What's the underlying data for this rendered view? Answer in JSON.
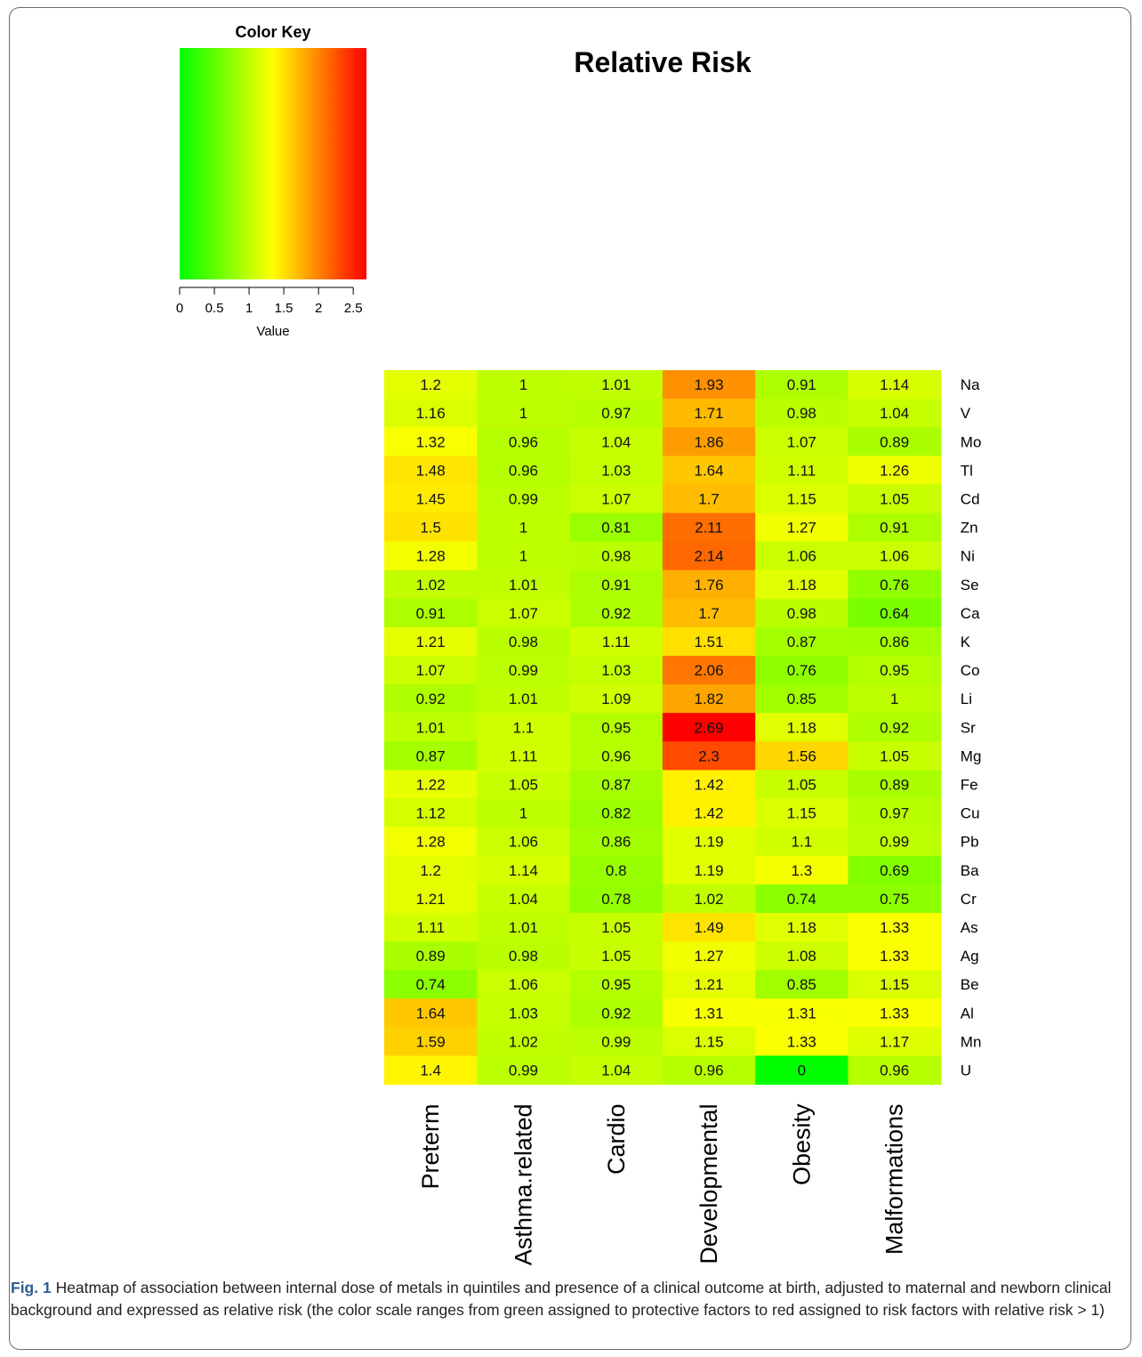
{
  "chart_data": {
    "type": "heatmap",
    "title": "Relative Risk",
    "rows": [
      "Na",
      "V",
      "Mo",
      "Tl",
      "Cd",
      "Zn",
      "Ni",
      "Se",
      "Ca",
      "K",
      "Co",
      "Li",
      "Sr",
      "Mg",
      "Fe",
      "Cu",
      "Pb",
      "Ba",
      "Cr",
      "As",
      "Ag",
      "Be",
      "Al",
      "Mn",
      "U"
    ],
    "columns": [
      "Preterm",
      "Asthma.related",
      "Cardio",
      "Developmental",
      "Obesity",
      "Malformations"
    ],
    "values": [
      [
        "1.2",
        "1",
        "1.01",
        "1.93",
        "0.91",
        "1.14"
      ],
      [
        "1.16",
        "1",
        "0.97",
        "1.71",
        "0.98",
        "1.04"
      ],
      [
        "1.32",
        "0.96",
        "1.04",
        "1.86",
        "1.07",
        "0.89"
      ],
      [
        "1.48",
        "0.96",
        "1.03",
        "1.64",
        "1.11",
        "1.26"
      ],
      [
        "1.45",
        "0.99",
        "1.07",
        "1.7",
        "1.15",
        "1.05"
      ],
      [
        "1.5",
        "1",
        "0.81",
        "2.11",
        "1.27",
        "0.91"
      ],
      [
        "1.28",
        "1",
        "0.98",
        "2.14",
        "1.06",
        "1.06"
      ],
      [
        "1.02",
        "1.01",
        "0.91",
        "1.76",
        "1.18",
        "0.76"
      ],
      [
        "0.91",
        "1.07",
        "0.92",
        "1.7",
        "0.98",
        "0.64"
      ],
      [
        "1.21",
        "0.98",
        "1.11",
        "1.51",
        "0.87",
        "0.86"
      ],
      [
        "1.07",
        "0.99",
        "1.03",
        "2.06",
        "0.76",
        "0.95"
      ],
      [
        "0.92",
        "1.01",
        "1.09",
        "1.82",
        "0.85",
        "1"
      ],
      [
        "1.01",
        "1.1",
        "0.95",
        "2.69",
        "1.18",
        "0.92"
      ],
      [
        "0.87",
        "1.11",
        "0.96",
        "2.3",
        "1.56",
        "1.05"
      ],
      [
        "1.22",
        "1.05",
        "0.87",
        "1.42",
        "1.05",
        "0.89"
      ],
      [
        "1.12",
        "1",
        "0.82",
        "1.42",
        "1.15",
        "0.97"
      ],
      [
        "1.28",
        "1.06",
        "0.86",
        "1.19",
        "1.1",
        "0.99"
      ],
      [
        "1.2",
        "1.14",
        "0.8",
        "1.19",
        "1.3",
        "0.69"
      ],
      [
        "1.21",
        "1.04",
        "0.78",
        "1.02",
        "0.74",
        "0.75"
      ],
      [
        "1.11",
        "1.01",
        "1.05",
        "1.49",
        "1.18",
        "1.33"
      ],
      [
        "0.89",
        "0.98",
        "1.05",
        "1.27",
        "1.08",
        "1.33"
      ],
      [
        "0.74",
        "1.06",
        "0.95",
        "1.21",
        "0.85",
        "1.15"
      ],
      [
        "1.64",
        "1.03",
        "0.92",
        "1.31",
        "1.31",
        "1.33"
      ],
      [
        "1.59",
        "1.02",
        "0.99",
        "1.15",
        "1.33",
        "1.17"
      ],
      [
        "1.4",
        "0.99",
        "1.04",
        "0.96",
        "0",
        "0.96"
      ]
    ],
    "color_key": {
      "title": "Color Key",
      "xlabel": "Value",
      "range": [
        0,
        2.69
      ],
      "ticks": [
        "0",
        "0.5",
        "1",
        "1.5",
        "2",
        "2.5"
      ],
      "colors": [
        "#00ff00",
        "#ffff00",
        "#ff0000"
      ]
    }
  },
  "caption": {
    "label": "Fig. 1",
    "text": " Heatmap of association between internal dose of metals in quintiles and presence of a clinical outcome at birth, adjusted to maternal and newborn clinical background and expressed as relative risk (the color scale ranges from green assigned to protective factors to red assigned to risk factors with relative risk > 1)"
  }
}
